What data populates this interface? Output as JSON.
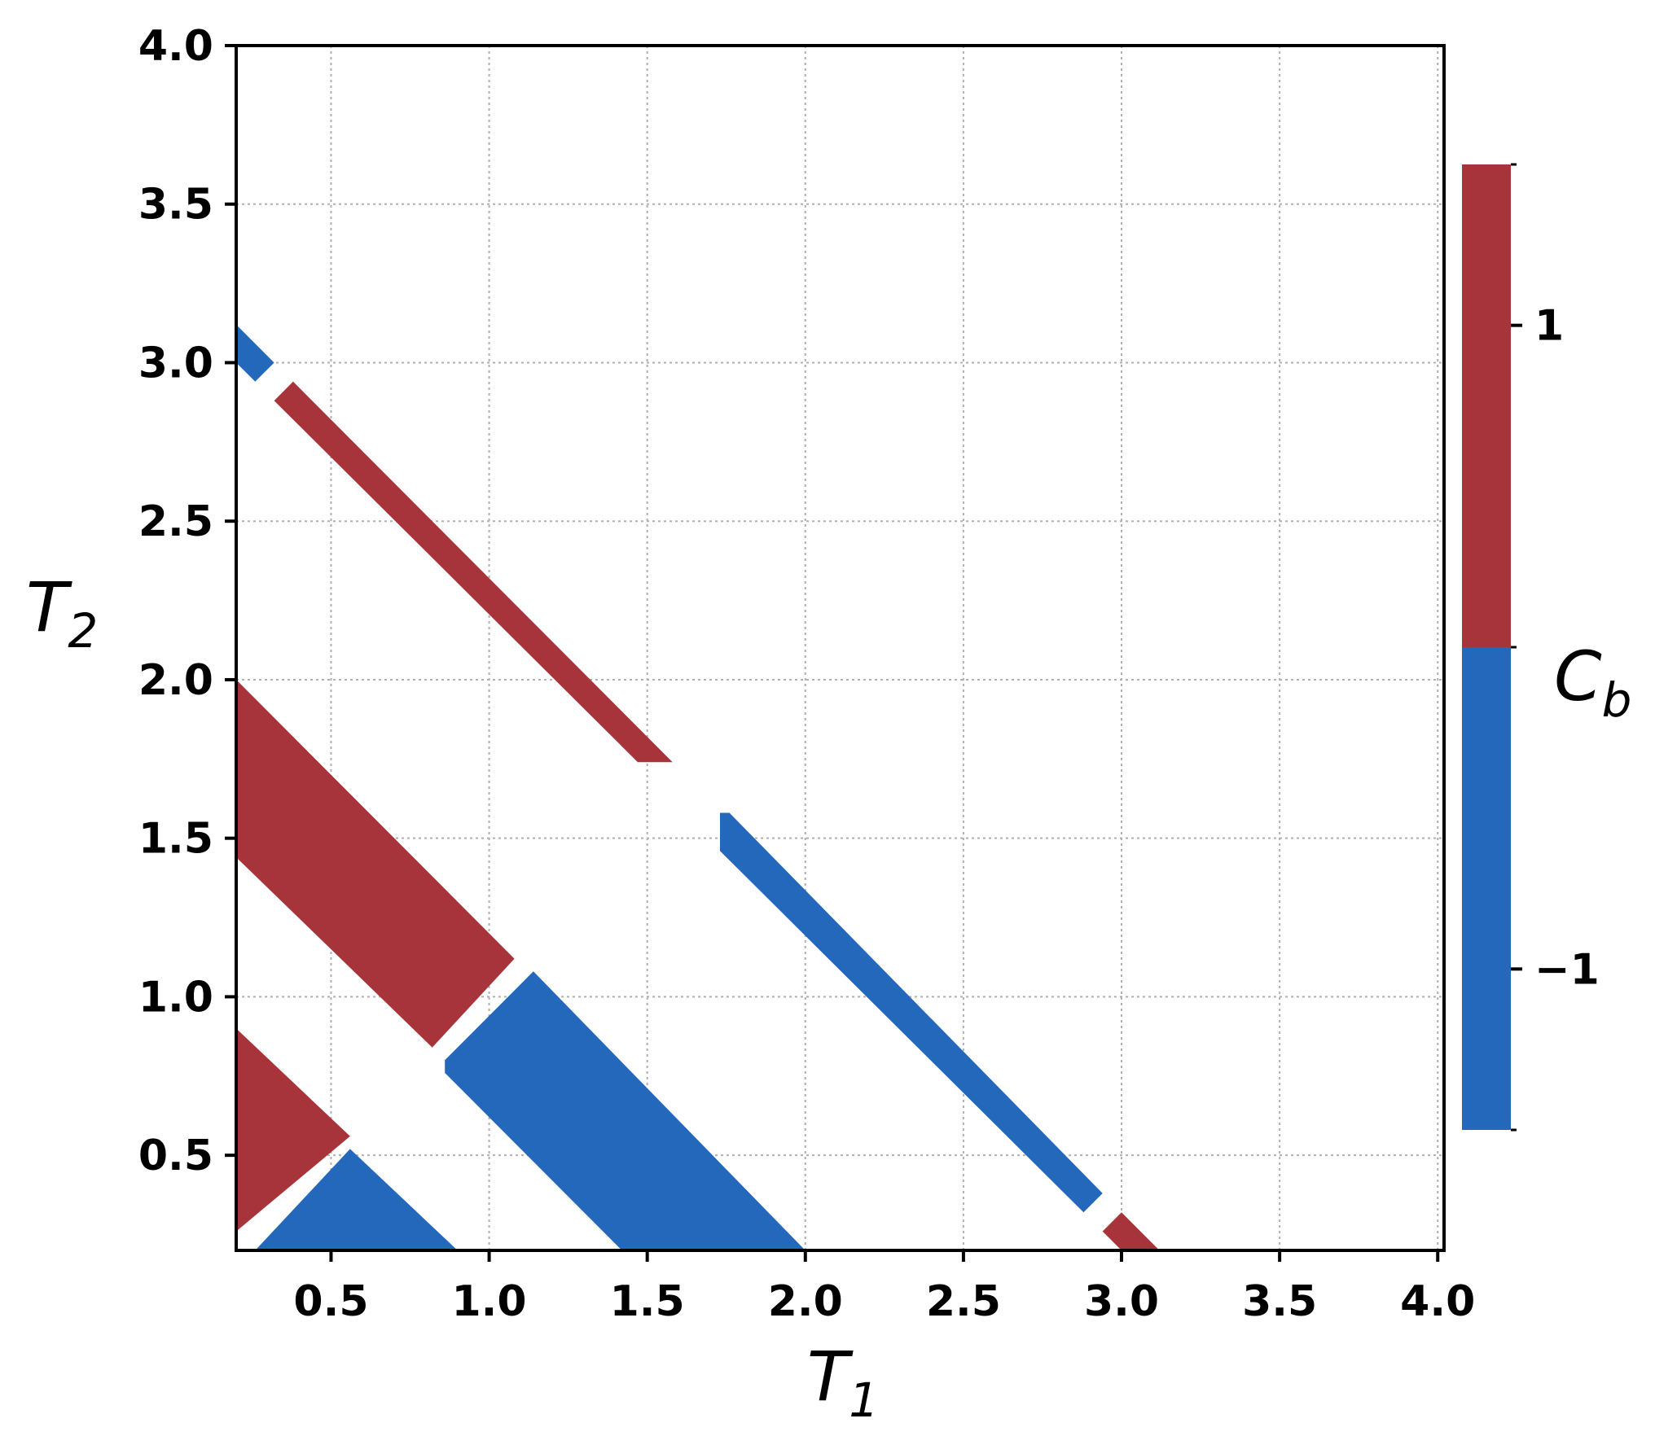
{
  "chart_data": {
    "type": "heatmap",
    "xlabel": "T",
    "xlabel_subscript": "1",
    "ylabel": "T",
    "ylabel_subscript": "2",
    "xlim": [
      0.2,
      4.02
    ],
    "ylim": [
      0.2,
      4.0
    ],
    "x_ticks": [
      "0.5",
      "1.0",
      "1.5",
      "2.0",
      "2.5",
      "3.0",
      "3.5",
      "4.0"
    ],
    "y_ticks": [
      "0.5",
      "1.0",
      "1.5",
      "2.0",
      "2.5",
      "3.0",
      "3.5",
      "4.0"
    ],
    "grid": true,
    "colorbar": {
      "label": "C",
      "label_subscript": "b",
      "ticks": [
        "1",
        "−1"
      ],
      "tick_values": [
        1,
        -1
      ],
      "range": [
        -1.5,
        1.5
      ],
      "colors": {
        "positive": "#a8343b",
        "negative": "#2468bc"
      }
    },
    "regions": [
      {
        "value": -1,
        "color": "#2468bc",
        "polygon": [
          [
            0.2,
            3.12
          ],
          [
            0.32,
            3.0
          ],
          [
            0.26,
            2.94
          ],
          [
            0.2,
            3.0
          ]
        ]
      },
      {
        "value": 1,
        "color": "#a8343b",
        "polygon": [
          [
            0.32,
            2.88
          ],
          [
            0.38,
            2.94
          ],
          [
            1.58,
            1.74
          ],
          [
            1.47,
            1.74
          ]
        ]
      },
      {
        "value": -1,
        "color": "#2468bc",
        "polygon": [
          [
            1.73,
            1.58
          ],
          [
            1.76,
            1.58
          ],
          [
            2.94,
            0.38
          ],
          [
            2.88,
            0.32
          ],
          [
            1.73,
            1.46
          ]
        ]
      },
      {
        "value": 1,
        "color": "#a8343b",
        "polygon": [
          [
            2.94,
            0.26
          ],
          [
            3.0,
            0.32
          ],
          [
            3.12,
            0.2
          ],
          [
            3.0,
            0.2
          ]
        ]
      },
      {
        "value": 1,
        "color": "#a8343b",
        "polygon": [
          [
            0.2,
            2.0
          ],
          [
            1.08,
            1.12
          ],
          [
            0.82,
            0.84
          ],
          [
            0.2,
            1.44
          ]
        ]
      },
      {
        "value": -1,
        "color": "#2468bc",
        "polygon": [
          [
            0.86,
            0.8
          ],
          [
            1.14,
            1.08
          ],
          [
            2.0,
            0.2
          ],
          [
            1.42,
            0.2
          ],
          [
            0.86,
            0.76
          ]
        ]
      },
      {
        "value": 1,
        "color": "#a8343b",
        "polygon": [
          [
            0.2,
            0.9
          ],
          [
            0.56,
            0.56
          ],
          [
            0.2,
            0.26
          ]
        ]
      },
      {
        "value": -1,
        "color": "#2468bc",
        "polygon": [
          [
            0.26,
            0.2
          ],
          [
            0.56,
            0.52
          ],
          [
            0.9,
            0.2
          ]
        ]
      }
    ]
  }
}
